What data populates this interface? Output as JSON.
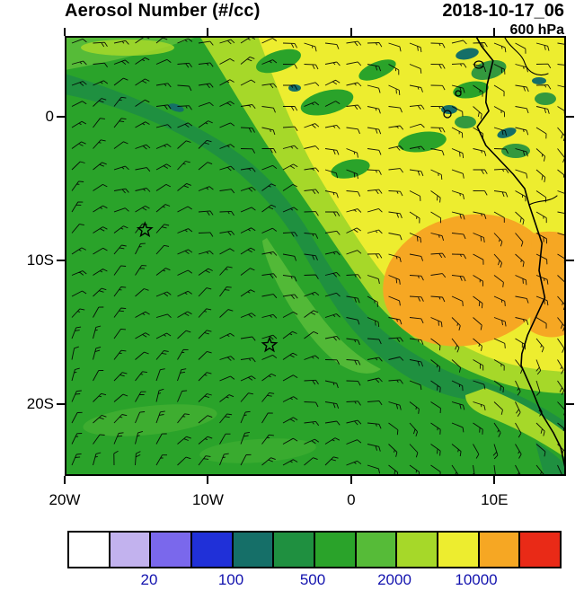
{
  "header": {
    "title": "Aerosol Number (#/cc)",
    "datetime": "2018-10-17_06",
    "level": "600 hPa"
  },
  "axes": {
    "lon_range": [
      -20,
      15
    ],
    "lat_range": [
      -25,
      5.6
    ],
    "x_ticks": [
      {
        "label": "20W",
        "lon": -20
      },
      {
        "label": "10W",
        "lon": -10
      },
      {
        "label": "0",
        "lon": 0
      },
      {
        "label": "10E",
        "lon": 10
      }
    ],
    "y_ticks": [
      {
        "label": "0",
        "lat": 0
      },
      {
        "label": "10S",
        "lat": -10
      },
      {
        "label": "20S",
        "lat": -20
      }
    ]
  },
  "colorbar": {
    "colors": [
      "#FFFFFF",
      "#C2B2EE",
      "#7A68EC",
      "#2030D8",
      "#156F68",
      "#1F9040",
      "#2AA32A",
      "#56BB38",
      "#A6D829",
      "#EDED2F",
      "#F6A723",
      "#E92A17"
    ],
    "tick_labels": [
      "20",
      "100",
      "500",
      "2000",
      "10000"
    ],
    "label_color": "#1212AE"
  },
  "chart_data": {
    "type": "heatmap",
    "title": "Aerosol Number (#/cc)",
    "datetime_label": "2018-10-17_06",
    "pressure_level": "600 hPa",
    "units": "#/cc",
    "lon_range_deg": [
      -20,
      15
    ],
    "lat_range_deg": [
      -25,
      5.6
    ],
    "x_tick_labels": [
      "20W",
      "10W",
      "0",
      "10E"
    ],
    "y_tick_labels": [
      "0",
      "10S",
      "20S"
    ],
    "colorbar_tick_values": [
      20,
      100,
      500,
      2000,
      10000
    ],
    "colorbar_colors": [
      "#FFFFFF",
      "#C2B2EE",
      "#7A68EC",
      "#2030D8",
      "#156F68",
      "#1F9040",
      "#2AA32A",
      "#56BB38",
      "#A6D829",
      "#EDED2F",
      "#F6A723",
      "#E92A17"
    ],
    "overlays": [
      "wind barbs",
      "coastline of southwest Africa",
      "star station markers"
    ],
    "markers": [
      {
        "symbol": "star",
        "lon_deg": -14.4,
        "lat_deg": -7.9
      },
      {
        "symbol": "star",
        "lon_deg": -5.7,
        "lat_deg": -15.9
      }
    ],
    "field_regions": [
      {
        "region": "west and central South Atlantic (most of map)",
        "value_class": "500-2000",
        "color": "green"
      },
      {
        "region": "northeast quadrant toward Gulf of Guinea and eastern ocean",
        "value_class": "2000-10000",
        "color": "yellow-green to yellow"
      },
      {
        "region": "plume off Angola coast, about 6S-15S from 2E to the coast",
        "value_class": ">10000",
        "color": "orange"
      },
      {
        "region": "sinuous frontal band from northwest edge southeast to the coast",
        "value_class": "200-500",
        "color": "dark green"
      },
      {
        "region": "small patches near the equatorial African coast and top-left band",
        "value_class": "100-200",
        "color": "dark teal"
      }
    ]
  }
}
